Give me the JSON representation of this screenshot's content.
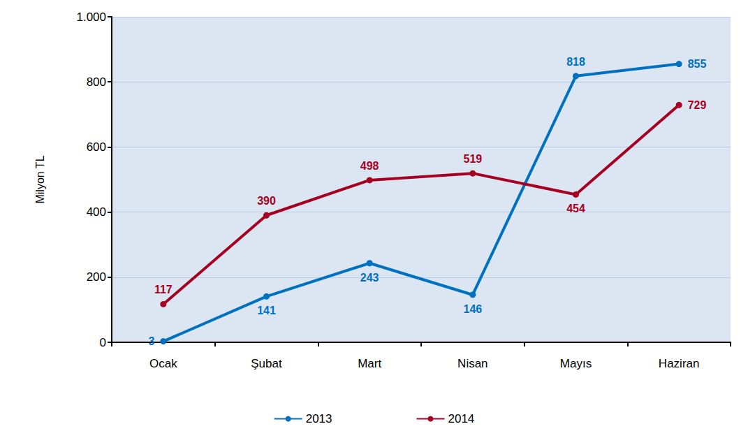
{
  "chart_data": {
    "type": "line",
    "y_label": "Milyon TL",
    "categories": [
      "Ocak",
      "Şubat",
      "Mart",
      "Nisan",
      "Mayıs",
      "Haziran"
    ],
    "series": [
      {
        "name": "2013",
        "color": "#0070C0",
        "values": [
          3,
          141,
          243,
          146,
          818,
          855
        ],
        "marker": "circle"
      },
      {
        "name": "2014",
        "color": "#A50021",
        "values": [
          117,
          390,
          498,
          519,
          454,
          729
        ],
        "marker": "circle"
      }
    ],
    "ylim": [
      0,
      1000
    ],
    "yticks": [
      0,
      200,
      400,
      600,
      800,
      {
        "value": 1000,
        "label": "1.000"
      }
    ],
    "grid": true,
    "legend": "bottom",
    "data_labels": true
  }
}
